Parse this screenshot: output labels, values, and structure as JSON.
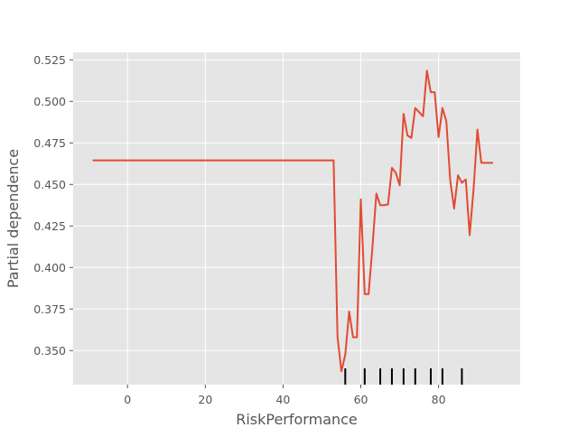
{
  "chart_data": {
    "type": "line",
    "title": "",
    "xlabel": "RiskPerformance",
    "ylabel": "Partial dependence",
    "xlim": [
      -14,
      101
    ],
    "ylim": [
      0.3295,
      0.5295
    ],
    "xticks": [
      0,
      20,
      40,
      60,
      80
    ],
    "xtick_labels": [
      "0",
      "20",
      "40",
      "60",
      "80"
    ],
    "yticks": [
      0.35,
      0.375,
      0.4,
      0.425,
      0.45,
      0.475,
      0.5,
      0.525
    ],
    "ytick_labels": [
      "0.350",
      "0.375",
      "0.400",
      "0.425",
      "0.450",
      "0.475",
      "0.500",
      "0.525"
    ],
    "grid": true,
    "line_color": "#E24A33",
    "background_color": "#E5E5E5",
    "series": [
      {
        "x": [
          -9,
          53,
          54,
          55,
          56,
          57,
          58,
          59,
          60,
          61,
          62,
          63,
          64,
          65,
          66,
          67,
          68,
          69,
          70,
          71,
          72,
          73,
          74,
          75,
          76,
          77,
          78,
          79,
          80,
          81,
          82,
          83,
          84,
          85,
          86,
          87,
          88,
          89,
          90,
          91,
          92,
          93,
          94
        ],
        "y": [
          0.4645,
          0.4645,
          0.3585,
          0.3375,
          0.3475,
          0.3735,
          0.358,
          0.358,
          0.441,
          0.384,
          0.384,
          0.4125,
          0.4445,
          0.4375,
          0.4375,
          0.438,
          0.46,
          0.457,
          0.4495,
          0.4925,
          0.4795,
          0.478,
          0.496,
          0.4935,
          0.491,
          0.5185,
          0.5055,
          0.5055,
          0.4785,
          0.496,
          0.488,
          0.4525,
          0.4355,
          0.4555,
          0.451,
          0.453,
          0.4195,
          0.447,
          0.483,
          0.463,
          0.463,
          0.463,
          0.463
        ]
      }
    ],
    "rug_ticks": [
      56,
      61,
      65,
      68,
      71,
      74,
      78,
      81,
      86
    ]
  }
}
